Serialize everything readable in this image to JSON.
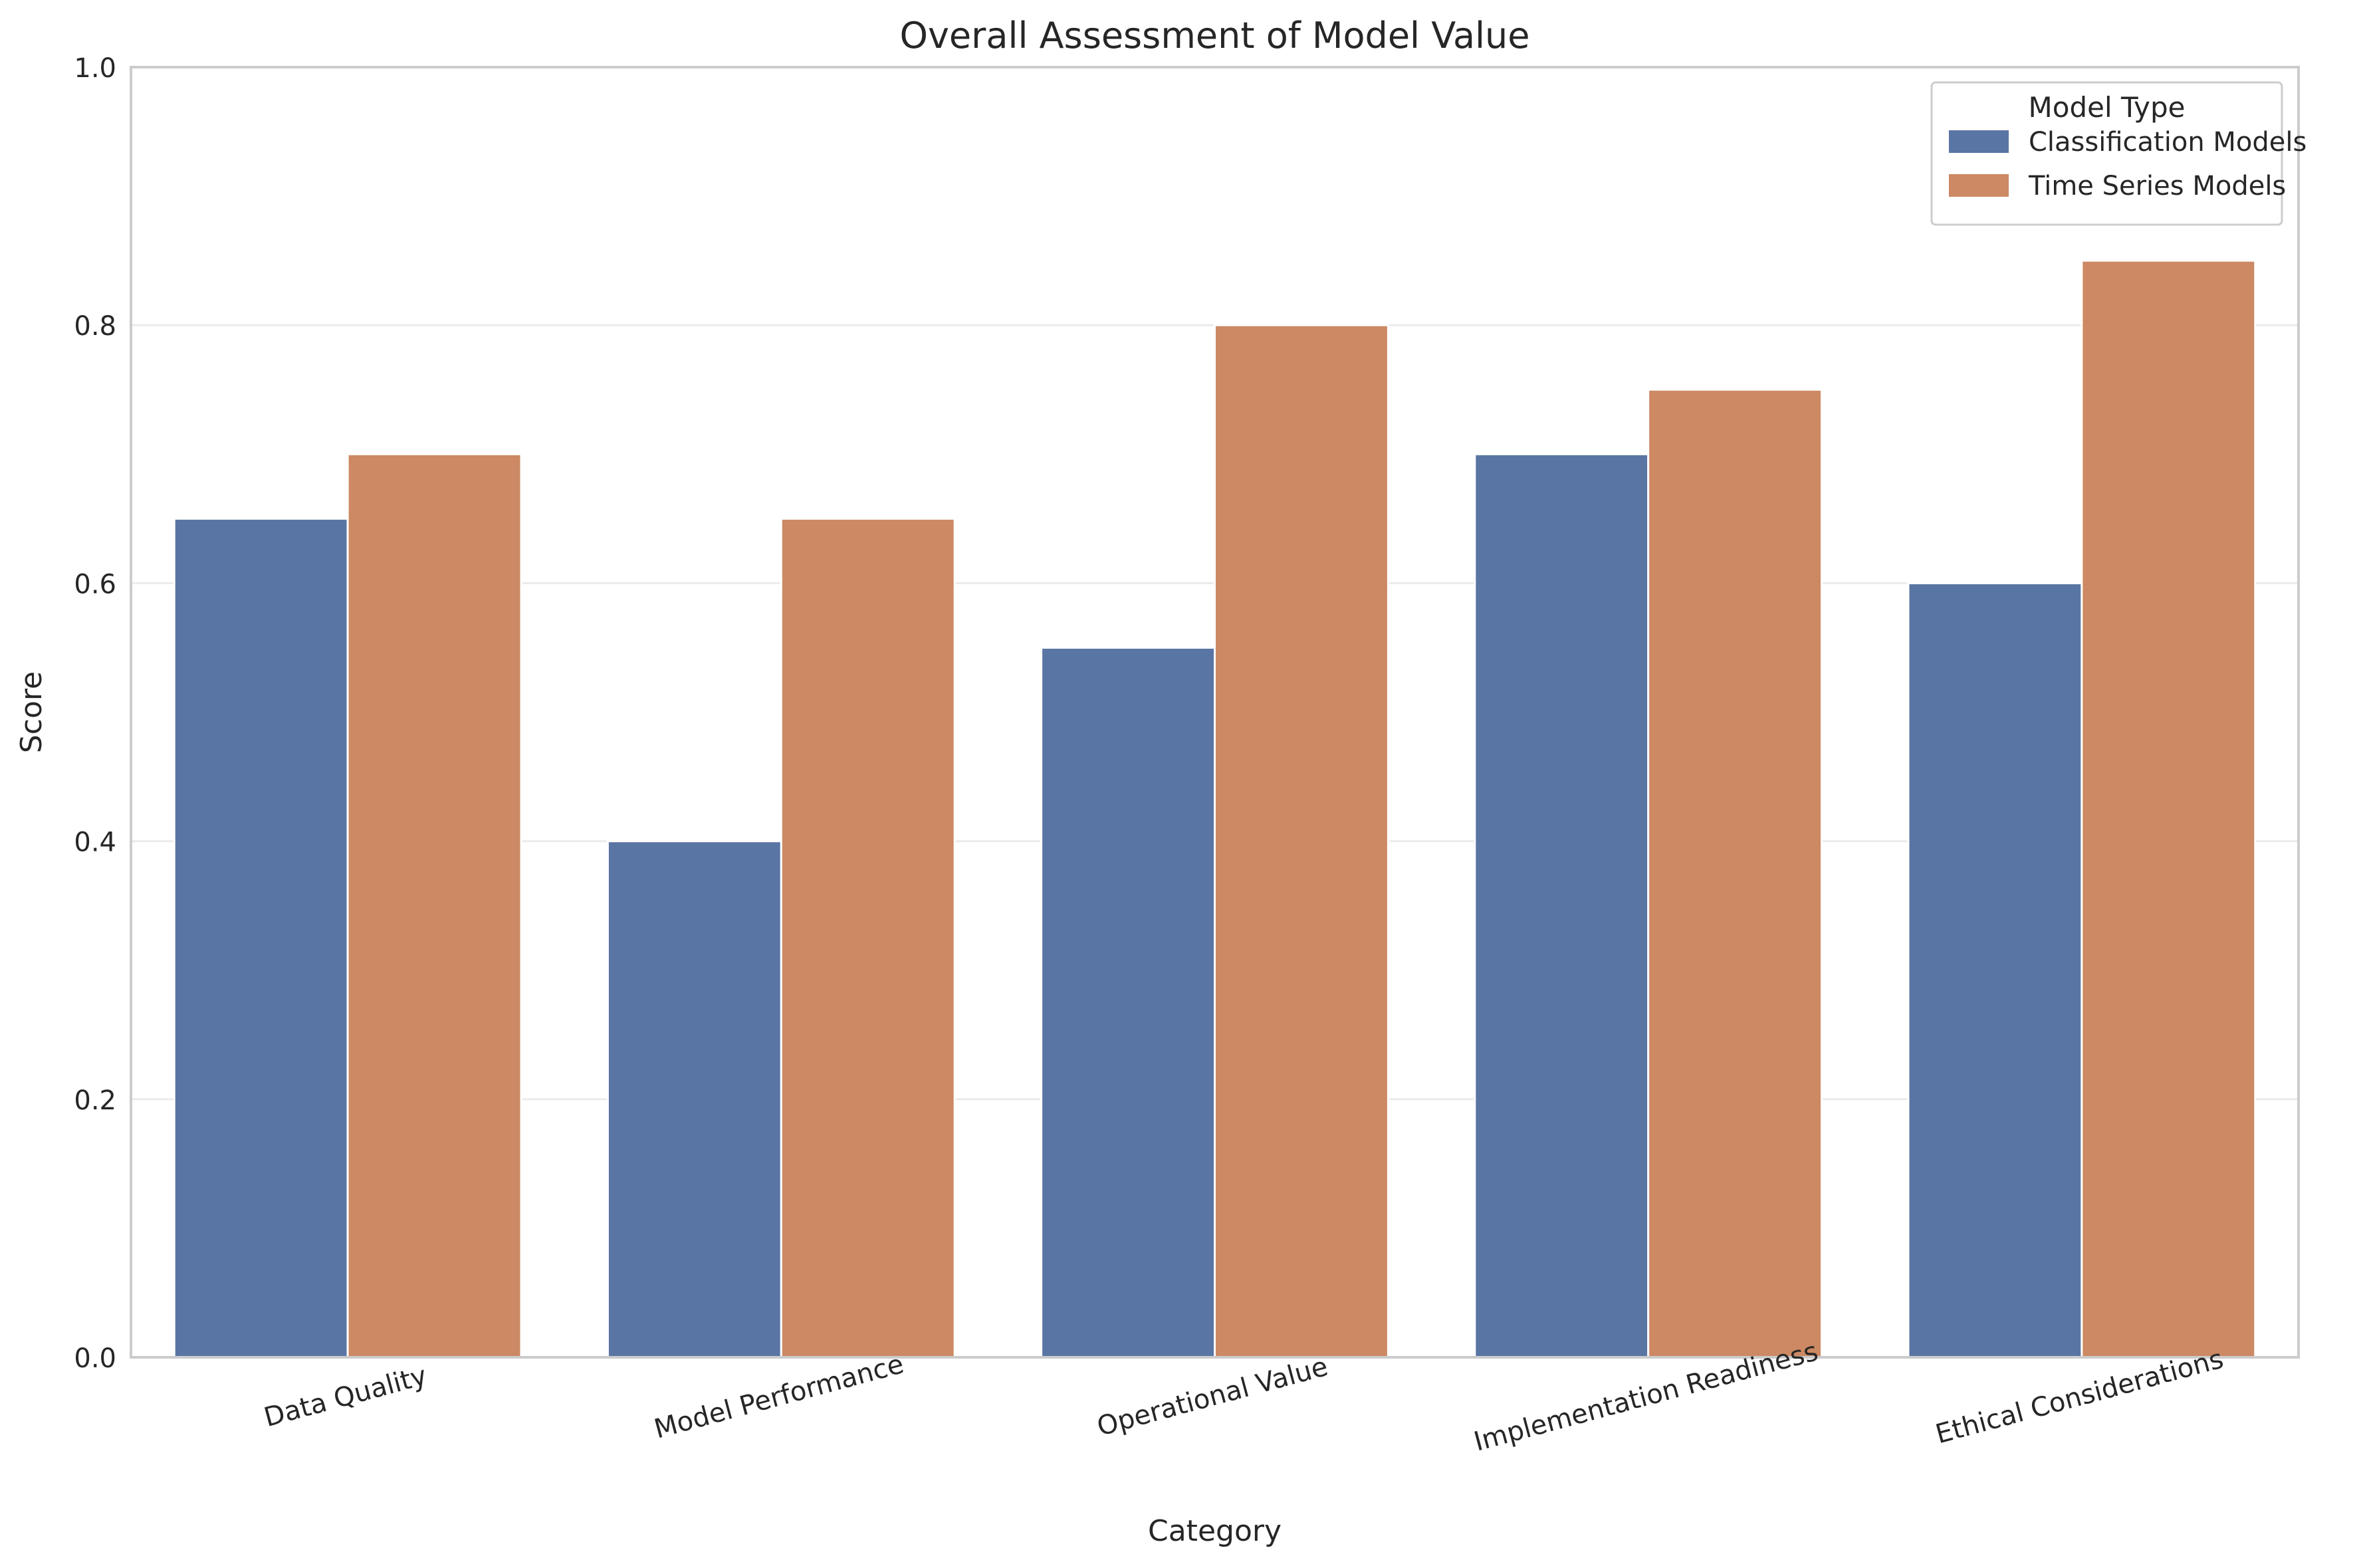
{
  "chart_data": {
    "type": "bar",
    "title": "Overall Assessment of Model Value",
    "xlabel": "Category",
    "ylabel": "Score",
    "ylim": [
      0,
      1.0
    ],
    "yticks": [
      "0.0",
      "0.2",
      "0.4",
      "0.6",
      "0.8",
      "1.0"
    ],
    "ytick_values": [
      0,
      0.2,
      0.4,
      0.6,
      0.8,
      1.0
    ],
    "categories": [
      "Data Quality",
      "Model Performance",
      "Operational Value",
      "Implementation Readiness",
      "Ethical Considerations"
    ],
    "series": [
      {
        "name": "Classification Models",
        "color": "#5975a4",
        "values": [
          0.65,
          0.4,
          0.55,
          0.7,
          0.6
        ]
      },
      {
        "name": "Time Series Models",
        "color": "#cc8963",
        "values": [
          0.7,
          0.65,
          0.8,
          0.75,
          0.85
        ]
      }
    ],
    "legend": {
      "title": "Model Type",
      "position": "top-right"
    },
    "grid": "horizontal",
    "xtick_rotation_deg": 15
  }
}
